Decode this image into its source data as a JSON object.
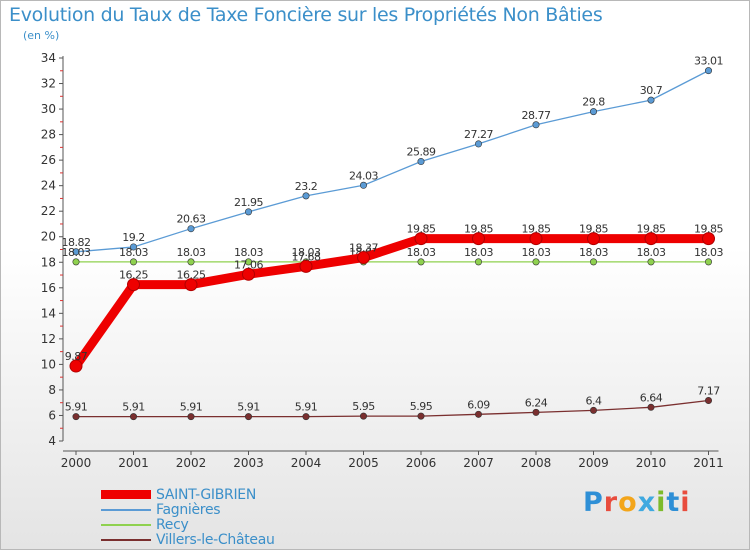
{
  "title": "Evolution du Taux de Taxe Foncière sur les Propriétés Non Bâties",
  "unit_label": "(en %)",
  "logo": {
    "text": "Proxiti",
    "colors": [
      "#2e8fd6",
      "#e84c3d",
      "#f3a51a",
      "#3fa9e0",
      "#7dbb2b",
      "#2e8fd6",
      "#e84c3d"
    ]
  },
  "chart_data": {
    "type": "line",
    "title": "Evolution du Taux de Taxe Foncière sur les Propriétés Non Bâties",
    "ylabel": "(en %)",
    "xlabel": "",
    "x": [
      "2000",
      "2001",
      "2002",
      "2003",
      "2004",
      "2005",
      "2006",
      "2007",
      "2008",
      "2009",
      "2010",
      "2011"
    ],
    "ylim": [
      4,
      34
    ],
    "yticks": [
      4,
      6,
      8,
      10,
      12,
      14,
      16,
      18,
      20,
      22,
      24,
      26,
      28,
      30,
      32,
      34
    ],
    "grid": false,
    "legend_position": "bottom-left",
    "series": [
      {
        "name": "Fagnières",
        "color": "#5b9bd5",
        "values": [
          18.82,
          19.2,
          20.63,
          21.95,
          23.2,
          24.03,
          25.89,
          27.27,
          28.77,
          29.8,
          30.7,
          33.01
        ],
        "labels": [
          "18.82",
          "19.2",
          "20.63",
          "21.95",
          "23.2",
          "24.03",
          "25.89",
          "27.27",
          "28.77",
          "29.8",
          "30.7",
          "33.01"
        ],
        "weight": "thin"
      },
      {
        "name": "Recy",
        "color": "#8fd14f",
        "values": [
          18.03,
          18.03,
          18.03,
          18.03,
          18.03,
          18.03,
          18.03,
          18.03,
          18.03,
          18.03,
          18.03,
          18.03
        ],
        "labels": [
          "18.03",
          "18.03",
          "18.03",
          "18.03",
          "18.03",
          "18.03",
          "18.03",
          "18.03",
          "18.03",
          "18.03",
          "18.03",
          "18.03"
        ],
        "weight": "thin"
      },
      {
        "name": "Villers-le-Château",
        "color": "#7a2f2f",
        "values": [
          5.91,
          5.91,
          5.91,
          5.91,
          5.91,
          5.95,
          5.95,
          6.09,
          6.24,
          6.4,
          6.64,
          7.17
        ],
        "labels": [
          "5.91",
          "5.91",
          "5.91",
          "5.91",
          "5.91",
          "5.95",
          "5.95",
          "6.09",
          "6.24",
          "6.4",
          "6.64",
          "7.17"
        ],
        "weight": "thin"
      },
      {
        "name": "SAINT-GIBRIEN",
        "color": "#ee0000",
        "values": [
          9.87,
          16.25,
          16.25,
          17.06,
          17.68,
          18.37,
          19.85,
          19.85,
          19.85,
          19.85,
          19.85,
          19.85
        ],
        "labels": [
          "9.87",
          "16.25",
          "16.25",
          "17.06",
          "17.68",
          "18.37",
          "19.85",
          "19.85",
          "19.85",
          "19.85",
          "19.85",
          "19.85"
        ],
        "weight": "thick"
      }
    ],
    "legend_order": [
      "SAINT-GIBRIEN",
      "Fagnières",
      "Recy",
      "Villers-le-Château"
    ]
  }
}
